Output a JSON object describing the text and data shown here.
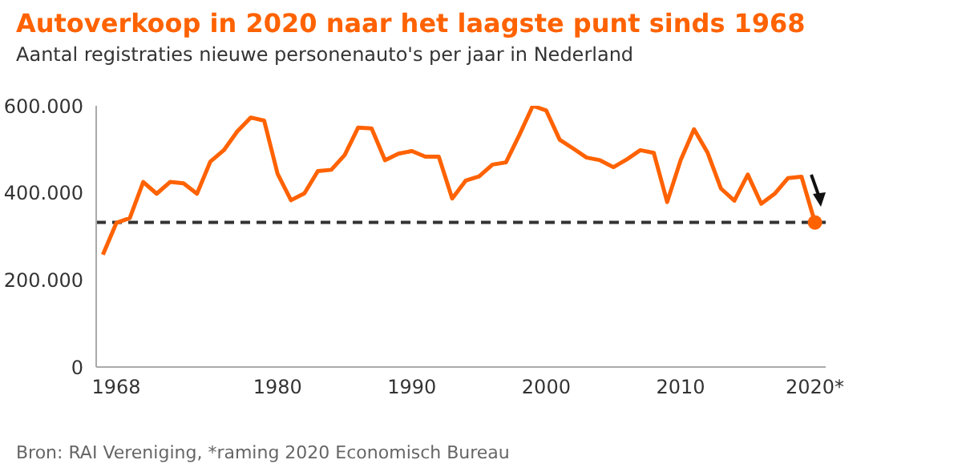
{
  "chart_data": {
    "type": "line",
    "title": "Autoverkoop in 2020 naar het laagste punt sinds 1968",
    "subtitle": "Aantal registraties nieuwe personenauto's per jaar in Nederland",
    "annotations": [
      "Bron: RAI Vereniging, *raming 2020 Economisch Bureau"
    ],
    "x": [
      1967,
      1968,
      1969,
      1970,
      1971,
      1972,
      1973,
      1974,
      1975,
      1976,
      1977,
      1978,
      1979,
      1980,
      1981,
      1982,
      1983,
      1984,
      1985,
      1986,
      1987,
      1988,
      1989,
      1990,
      1991,
      1992,
      1993,
      1994,
      1995,
      1996,
      1997,
      1998,
      1999,
      2000,
      2001,
      2002,
      2003,
      2004,
      2005,
      2006,
      2007,
      2008,
      2009,
      2010,
      2011,
      2012,
      2013,
      2014,
      2015,
      2016,
      2017,
      2018,
      2019,
      2020
    ],
    "series": [
      {
        "color": "#ff6200",
        "marker": "none",
        "values": [
          258000,
          331000,
          342000,
          425000,
          398000,
          425000,
          422000,
          398000,
          472000,
          498000,
          541000,
          573000,
          566000,
          444000,
          383000,
          399000,
          450000,
          453000,
          487000,
          550000,
          548000,
          475000,
          490000,
          496000,
          483000,
          483000,
          387000,
          428000,
          438000,
          465000,
          470000,
          533000,
          600000,
          589000,
          522000,
          502000,
          481000,
          475000,
          459000,
          477000,
          498000,
          492000,
          379000,
          475000,
          546000,
          493000,
          410000,
          382000,
          442000,
          375000,
          398000,
          434000,
          437000,
          332000
        ]
      },
      {
        "type": "scatter",
        "color": "#ff6200",
        "marker": "circle",
        "x": [
          2020
        ],
        "values": [
          332000
        ]
      }
    ],
    "ref_lines": [
      {
        "axis": "y",
        "value": 332000,
        "color": "#333333",
        "line_style": "dashed"
      }
    ],
    "xlim": [
      1966.5,
      2020.8
    ],
    "xticks": [
      1968,
      1980,
      1990,
      2000,
      2010,
      {
        "value": 2020,
        "label": "2020*"
      }
    ],
    "ylim": [
      0,
      600000
    ],
    "yticks": [
      0,
      {
        "value": 200000,
        "label": "200.000"
      },
      {
        "value": 400000,
        "label": "400.000"
      },
      {
        "value": 600000,
        "label": "600.000"
      }
    ],
    "grid": false
  }
}
